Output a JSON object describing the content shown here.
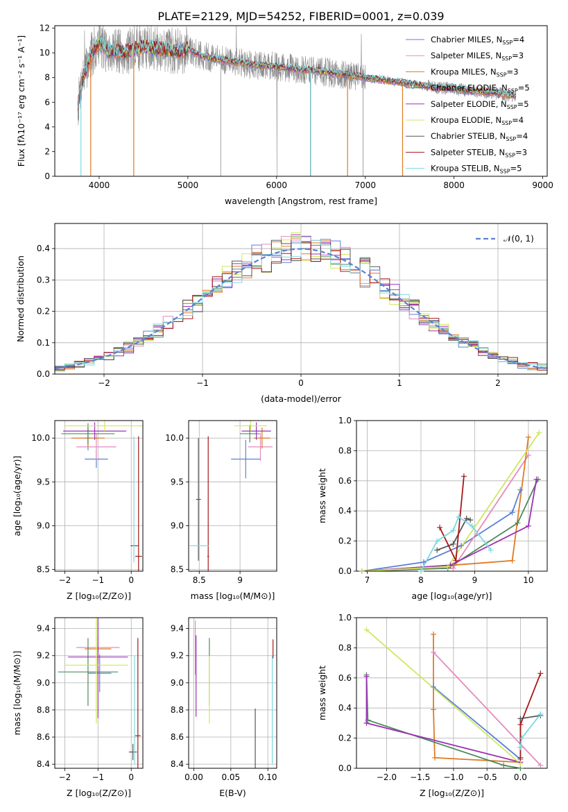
{
  "figure_title": "PLATE=2129, MJD=54252, FIBERID=0001, z=0.039",
  "colors": {
    "chabrier_miles": "#5b7fd6",
    "salpeter_miles": "#e38bbf",
    "kroupa_miles": "#dd7a22",
    "chabrier_elodie": "#4f8a5a",
    "salpeter_elodie": "#9b30b2",
    "kroupa_elodie": "#cfe85c",
    "chabrier_stelib": "#555555",
    "salpeter_stelib": "#a51818",
    "kroupa_stelib": "#7ad8e0",
    "data_spectrum": "#8a8a8a",
    "grid": "#b0b0b0"
  },
  "chart_data": [
    {
      "id": "spectrum",
      "type": "line",
      "xlabel": "wavelength [Angstrom, rest frame]",
      "ylabel": "Flux [fλ10⁻¹⁷ erg cm⁻² s⁻¹ A⁻¹]",
      "xlim": [
        3500,
        9050
      ],
      "ylim": [
        0,
        12.2
      ],
      "xticks": [
        4000,
        5000,
        6000,
        7000,
        8000,
        9000
      ],
      "yticks": [
        0,
        2,
        4,
        6,
        8,
        10,
        12
      ],
      "grid": false,
      "legend_position": "top-right",
      "legend": [
        {
          "label": "Chabrier MILES, N_SSP=4",
          "color_key": "chabrier_miles"
        },
        {
          "label": "Salpeter MILES, N_SSP=3",
          "color_key": "salpeter_miles"
        },
        {
          "label": "Kroupa MILES, N_SSP=3",
          "color_key": "kroupa_miles"
        },
        {
          "label": "Chabrier ELODIE, N_SSP=5",
          "color_key": "chabrier_elodie"
        },
        {
          "label": "Salpeter ELODIE, N_SSP=5",
          "color_key": "salpeter_elodie"
        },
        {
          "label": "Kroupa ELODIE, N_SSP=4",
          "color_key": "kroupa_elodie"
        },
        {
          "label": "Chabrier STELIB, N_SSP=4",
          "color_key": "chabrier_stelib"
        },
        {
          "label": "Salpeter STELIB, N_SSP=3",
          "color_key": "salpeter_stelib"
        },
        {
          "label": "Kroupa STELIB, N_SSP=5",
          "color_key": "kroupa_stelib"
        }
      ],
      "legend_parts": [
        {
          "pre": "Chabrier MILES, N",
          "sub": "SSP",
          "post": "=4"
        },
        {
          "pre": "Salpeter MILES, N",
          "sub": "SSP",
          "post": "=3"
        },
        {
          "pre": "Kroupa MILES, N",
          "sub": "SSP",
          "post": "=3"
        },
        {
          "pre": "Chabrier ELODIE, N",
          "sub": "SSP",
          "post": "=5"
        },
        {
          "pre": "Salpeter ELODIE, N",
          "sub": "SSP",
          "post": "=5"
        },
        {
          "pre": "Kroupa ELODIE, N",
          "sub": "SSP",
          "post": "=4"
        },
        {
          "pre": "Chabrier STELIB, N",
          "sub": "SSP",
          "post": "=4"
        },
        {
          "pre": "Salpeter STELIB, N",
          "sub": "SSP",
          "post": "=3"
        },
        {
          "pre": "Kroupa STELIB, N",
          "sub": "SSP",
          "post": "=5"
        }
      ],
      "continuum": {
        "x": [
          3760,
          3800,
          3850,
          3900,
          3950,
          4000,
          4050,
          4100,
          4200,
          4300,
          4400,
          4500,
          4600,
          4700,
          4800,
          4900,
          5000,
          5100,
          5200,
          5300,
          5400,
          5500,
          5600,
          5800,
          6000,
          6200,
          6400,
          6600,
          6800,
          7000,
          7200,
          7400,
          7600,
          7800,
          8000,
          8200,
          8400,
          8600,
          8700
        ],
        "y": [
          5.6,
          7.6,
          8.6,
          9.6,
          10.3,
          10.8,
          10.5,
          10.1,
          10.2,
          10.0,
          10.3,
          10.5,
          10.4,
          10.3,
          10.2,
          10.1,
          10.3,
          9.9,
          9.7,
          9.5,
          9.4,
          9.3,
          9.2,
          9.0,
          8.9,
          8.7,
          8.6,
          8.4,
          8.2,
          8.0,
          7.8,
          7.6,
          7.4,
          7.2,
          7.1,
          6.9,
          6.8,
          6.6,
          6.5
        ]
      },
      "model_dropouts": [
        {
          "x": 3905,
          "color_key": "kroupa_miles"
        },
        {
          "x": 4390,
          "color_key": "kroupa_miles"
        },
        {
          "x": 3795,
          "color_key": "kroupa_stelib"
        },
        {
          "x": 6385,
          "color_key": "kroupa_stelib"
        },
        {
          "x": 6800,
          "color_key": "kroupa_miles"
        },
        {
          "x": 7420,
          "color_key": "kroupa_miles"
        }
      ]
    },
    {
      "id": "residual_histogram",
      "type": "step",
      "xlabel": "(data-model)/error",
      "ylabel": "Normed distribution",
      "xlim": [
        -2.5,
        2.5
      ],
      "ylim": [
        0,
        0.48
      ],
      "xticks": [
        -2,
        -1,
        0,
        1,
        2
      ],
      "yticks": [
        0.0,
        0.1,
        0.2,
        0.3,
        0.4
      ],
      "grid": true,
      "legend_position": "top-right",
      "reference_curve": {
        "label": "𝒩(0, 1)",
        "mean": 0,
        "sigma": 1,
        "style": "dashed",
        "color": "#5b7fd6"
      },
      "bin_edges_range": [
        -2.5,
        2.5
      ],
      "bin_count": 50
    },
    {
      "id": "age_vs_Z",
      "type": "errorbar",
      "xlabel": "Z [log₁₀(Z/Z⊙)]",
      "ylabel": "age  [log₁₀(age/yr)]",
      "xlim": [
        -2.3,
        0.35
      ],
      "ylim": [
        8.48,
        10.2
      ],
      "xticks": [
        -2,
        -1,
        0
      ],
      "yticks": [
        8.5,
        9.0,
        9.5,
        10.0
      ],
      "grid": true,
      "points": [
        {
          "x": -1.3,
          "y": 10.0,
          "xerr": 0.1,
          "yerr": 0.14,
          "color_key": "chabrier_miles"
        },
        {
          "x": -1.05,
          "y": 9.76,
          "xerr": 0.35,
          "yerr": 0.1,
          "color_key": "chabrier_miles"
        },
        {
          "x": -1.05,
          "y": 9.9,
          "xerr": 0.6,
          "yerr": 0.15,
          "color_key": "salpeter_miles"
        },
        {
          "x": -1.3,
          "y": 10.0,
          "xerr": 0.5,
          "yerr": 0.1,
          "color_key": "kroupa_miles"
        },
        {
          "x": -1.3,
          "y": 10.05,
          "xerr": 0.8,
          "yerr": 0.12,
          "color_key": "chabrier_elodie"
        },
        {
          "x": -1.1,
          "y": 10.08,
          "xerr": 0.95,
          "yerr": 0.1,
          "color_key": "salpeter_elodie"
        },
        {
          "x": -0.8,
          "y": 10.14,
          "xerr": 1.2,
          "yerr": 0.06,
          "color_key": "kroupa_elodie"
        },
        {
          "x": 0.1,
          "y": 8.77,
          "xerr": 0.12,
          "yerr": 0.0,
          "color_key": "chabrier_stelib"
        },
        {
          "x": 0.22,
          "y": 8.65,
          "xerr": 0.1,
          "yerr": 1.37,
          "color_key": "salpeter_stelib"
        },
        {
          "x": 0.08,
          "y": 9.3,
          "xerr": 0.0,
          "yerr": 0.72,
          "color_key": "kroupa_stelib"
        }
      ]
    },
    {
      "id": "age_vs_mass",
      "type": "errorbar",
      "xlabel": "mass [log₁₀(M/M⊙)]",
      "ylabel": "",
      "xlim": [
        8.37,
        9.45
      ],
      "ylim": [
        8.48,
        10.2
      ],
      "xticks": [
        8.5,
        9.0
      ],
      "yticks": [
        8.5,
        9.0,
        9.5,
        10.0
      ],
      "grid": true,
      "points": [
        {
          "x": 9.07,
          "y": 9.76,
          "xerr": 0.18,
          "yerr": 0.22,
          "color_key": "chabrier_miles"
        },
        {
          "x": 9.25,
          "y": 9.9,
          "xerr": 0.15,
          "yerr": 0.16,
          "color_key": "salpeter_miles"
        },
        {
          "x": 9.27,
          "y": 10.0,
          "xerr": 0.1,
          "yerr": 0.12,
          "color_key": "kroupa_miles"
        },
        {
          "x": 9.12,
          "y": 10.05,
          "xerr": 0.12,
          "yerr": 0.1,
          "color_key": "chabrier_elodie"
        },
        {
          "x": 9.2,
          "y": 10.08,
          "xerr": 0.18,
          "yerr": 0.1,
          "color_key": "salpeter_elodie"
        },
        {
          "x": 9.13,
          "y": 10.14,
          "xerr": 0.2,
          "yerr": 0.06,
          "color_key": "kroupa_elodie"
        },
        {
          "x": 8.49,
          "y": 9.3,
          "xerr": 0.03,
          "yerr": 0.7,
          "color_key": "chabrier_stelib"
        },
        {
          "x": 8.61,
          "y": 8.65,
          "xerr": 0.01,
          "yerr": 1.37,
          "color_key": "salpeter_stelib"
        },
        {
          "x": 8.5,
          "y": 8.77,
          "xerr": 0.12,
          "yerr": 0.0,
          "color_key": "kroupa_stelib"
        }
      ]
    },
    {
      "id": "massweight_vs_age",
      "type": "line",
      "xlabel": "age  [log₁₀(age/yr)]",
      "ylabel": "mass weight",
      "xlim": [
        6.8,
        10.35
      ],
      "ylim": [
        0,
        1.0
      ],
      "xticks": [
        7,
        8,
        9,
        10
      ],
      "yticks": [
        0.0,
        0.2,
        0.4,
        0.6,
        0.8,
        1.0
      ],
      "grid": true,
      "series": [
        {
          "color_key": "chabrier_miles",
          "x": [
            6.9,
            8.05,
            8.75,
            9.7,
            9.85
          ],
          "y": [
            0.0,
            0.06,
            0.17,
            0.39,
            0.54
          ]
        },
        {
          "color_key": "salpeter_miles",
          "x": [
            6.9,
            8.6,
            10.0
          ],
          "y": [
            0.0,
            0.02,
            0.77
          ]
        },
        {
          "color_key": "kroupa_miles",
          "x": [
            6.9,
            8.6,
            9.7,
            10.0
          ],
          "y": [
            0.0,
            0.04,
            0.07,
            0.89
          ]
        },
        {
          "color_key": "chabrier_elodie",
          "x": [
            6.9,
            8.5,
            9.8,
            10.18
          ],
          "y": [
            0.0,
            0.02,
            0.32,
            0.61
          ]
        },
        {
          "color_key": "salpeter_elodie",
          "x": [
            6.9,
            8.55,
            10.0,
            10.15
          ],
          "y": [
            0.0,
            0.04,
            0.3,
            0.61
          ]
        },
        {
          "color_key": "kroupa_elodie",
          "x": [
            6.9,
            8.5,
            10.2
          ],
          "y": [
            0.0,
            0.03,
            0.92
          ]
        },
        {
          "color_key": "chabrier_stelib",
          "x": [
            8.3,
            8.6,
            8.85,
            8.92
          ],
          "y": [
            0.14,
            0.18,
            0.35,
            0.34
          ]
        },
        {
          "color_key": "salpeter_stelib",
          "x": [
            8.35,
            8.65,
            8.8
          ],
          "y": [
            0.29,
            0.07,
            0.63
          ]
        },
        {
          "color_key": "kroupa_stelib",
          "x": [
            8.0,
            8.3,
            8.6,
            8.7,
            8.95,
            9.3
          ],
          "y": [
            0.0,
            0.2,
            0.27,
            0.36,
            0.3,
            0.14
          ]
        }
      ]
    },
    {
      "id": "mass_vs_Z",
      "type": "errorbar",
      "xlabel": "Z [log₁₀(Z/Z⊙)]",
      "ylabel": "mass [log₁₀(M/M⊙)]",
      "xlim": [
        -2.3,
        0.35
      ],
      "ylim": [
        8.37,
        9.48
      ],
      "xticks": [
        -2,
        -1,
        0
      ],
      "yticks": [
        8.4,
        8.6,
        8.8,
        9.0,
        9.2,
        9.4
      ],
      "grid": true,
      "points": [
        {
          "x": -0.95,
          "y": 9.07,
          "xerr": 0.35,
          "yerr": 0.14,
          "color_key": "chabrier_miles"
        },
        {
          "x": -1.0,
          "y": 9.26,
          "xerr": 0.65,
          "yerr": 0.2,
          "color_key": "salpeter_miles"
        },
        {
          "x": -1.0,
          "y": 9.25,
          "xerr": 0.4,
          "yerr": 0.1,
          "color_key": "kroupa_miles"
        },
        {
          "x": -1.3,
          "y": 9.08,
          "xerr": 0.9,
          "yerr": 0.25,
          "color_key": "chabrier_elodie"
        },
        {
          "x": -1.0,
          "y": 9.19,
          "xerr": 0.9,
          "yerr": 0.45,
          "color_key": "salpeter_elodie"
        },
        {
          "x": -1.05,
          "y": 9.13,
          "xerr": 0.95,
          "yerr": 0.43,
          "color_key": "kroupa_elodie"
        },
        {
          "x": 0.05,
          "y": 8.49,
          "xerr": 0.12,
          "yerr": 0.06,
          "color_key": "chabrier_stelib"
        },
        {
          "x": 0.2,
          "y": 8.61,
          "xerr": 0.08,
          "yerr": 0.72,
          "color_key": "salpeter_stelib"
        },
        {
          "x": 0.1,
          "y": 8.8,
          "xerr": 0.0,
          "yerr": 0.4,
          "color_key": "kroupa_stelib"
        }
      ]
    },
    {
      "id": "mass_vs_ebv",
      "type": "errorbar",
      "xlabel": "E(B-V)",
      "ylabel": "",
      "xlim": [
        -0.007,
        0.112
      ],
      "ylim": [
        8.37,
        9.48
      ],
      "xticks": [
        0.0,
        0.05,
        0.1
      ],
      "xtick_labels": [
        "0.00",
        "0.05",
        "0.10"
      ],
      "yticks": [
        8.4,
        8.6,
        8.8,
        9.0,
        9.2,
        9.4
      ],
      "grid": true,
      "points": [
        {
          "x": 0.002,
          "y": 9.26,
          "xerr": 0.0,
          "yerr": 0.2,
          "color_key": "salpeter_miles"
        },
        {
          "x": 0.003,
          "y": 9.05,
          "xerr": 0.0,
          "yerr": 0.3,
          "color_key": "salpeter_elodie"
        },
        {
          "x": 0.021,
          "y": 9.08,
          "xerr": 0.0,
          "yerr": 0.25,
          "color_key": "chabrier_elodie"
        },
        {
          "x": 0.021,
          "y": 8.95,
          "xerr": 0.0,
          "yerr": 0.25,
          "color_key": "kroupa_elodie"
        },
        {
          "x": 0.083,
          "y": 8.58,
          "xerr": 0.0,
          "yerr": 0.23,
          "color_key": "chabrier_stelib"
        },
        {
          "x": 0.107,
          "y": 9.25,
          "xerr": 0.0,
          "yerr": 0.07,
          "color_key": "salpeter_stelib"
        },
        {
          "x": 0.106,
          "y": 8.8,
          "xerr": 0.0,
          "yerr": 0.4,
          "color_key": "kroupa_stelib"
        }
      ]
    },
    {
      "id": "massweight_vs_Z",
      "type": "line",
      "xlabel": "Z [log₁₀(Z/Z⊙)]",
      "ylabel": "mass weight",
      "xlim": [
        -2.45,
        0.4
      ],
      "ylim": [
        0,
        1.0
      ],
      "xticks": [
        -2.0,
        -1.5,
        -1.0,
        -0.5,
        0.0
      ],
      "yticks": [
        0.0,
        0.2,
        0.4,
        0.6,
        0.8,
        1.0
      ],
      "grid": true,
      "series": [
        {
          "color_key": "chabrier_miles",
          "x": [
            -1.3,
            0.0
          ],
          "y": [
            0.54,
            0.06
          ]
        },
        {
          "color_key": "salpeter_miles",
          "x": [
            -1.3,
            0.3
          ],
          "y": [
            0.77,
            0.02
          ]
        },
        {
          "color_key": "kroupa_miles",
          "x": [
            -1.3,
            -1.3,
            -1.28,
            0.0
          ],
          "y": [
            0.89,
            0.39,
            0.07,
            0.04
          ]
        },
        {
          "color_key": "chabrier_elodie",
          "x": [
            -2.3,
            -2.28,
            -0.25,
            0.0
          ],
          "y": [
            0.62,
            0.32,
            0.02,
            0.0
          ]
        },
        {
          "color_key": "salpeter_elodie",
          "x": [
            -2.3,
            -2.3,
            0.0
          ],
          "y": [
            0.61,
            0.3,
            0.04
          ]
        },
        {
          "color_key": "kroupa_elodie",
          "x": [
            -2.3,
            0.0
          ],
          "y": [
            0.92,
            0.03
          ]
        },
        {
          "color_key": "chabrier_stelib",
          "x": [
            0.0,
            0.0,
            0.3
          ],
          "y": [
            0.14,
            0.33,
            0.35
          ]
        },
        {
          "color_key": "salpeter_stelib",
          "x": [
            0.0,
            0.0,
            0.3
          ],
          "y": [
            0.07,
            0.29,
            0.63
          ]
        },
        {
          "color_key": "kroupa_stelib",
          "x": [
            0.0,
            0.02,
            0.3
          ],
          "y": [
            0.14,
            0.2,
            0.36
          ]
        }
      ]
    }
  ]
}
